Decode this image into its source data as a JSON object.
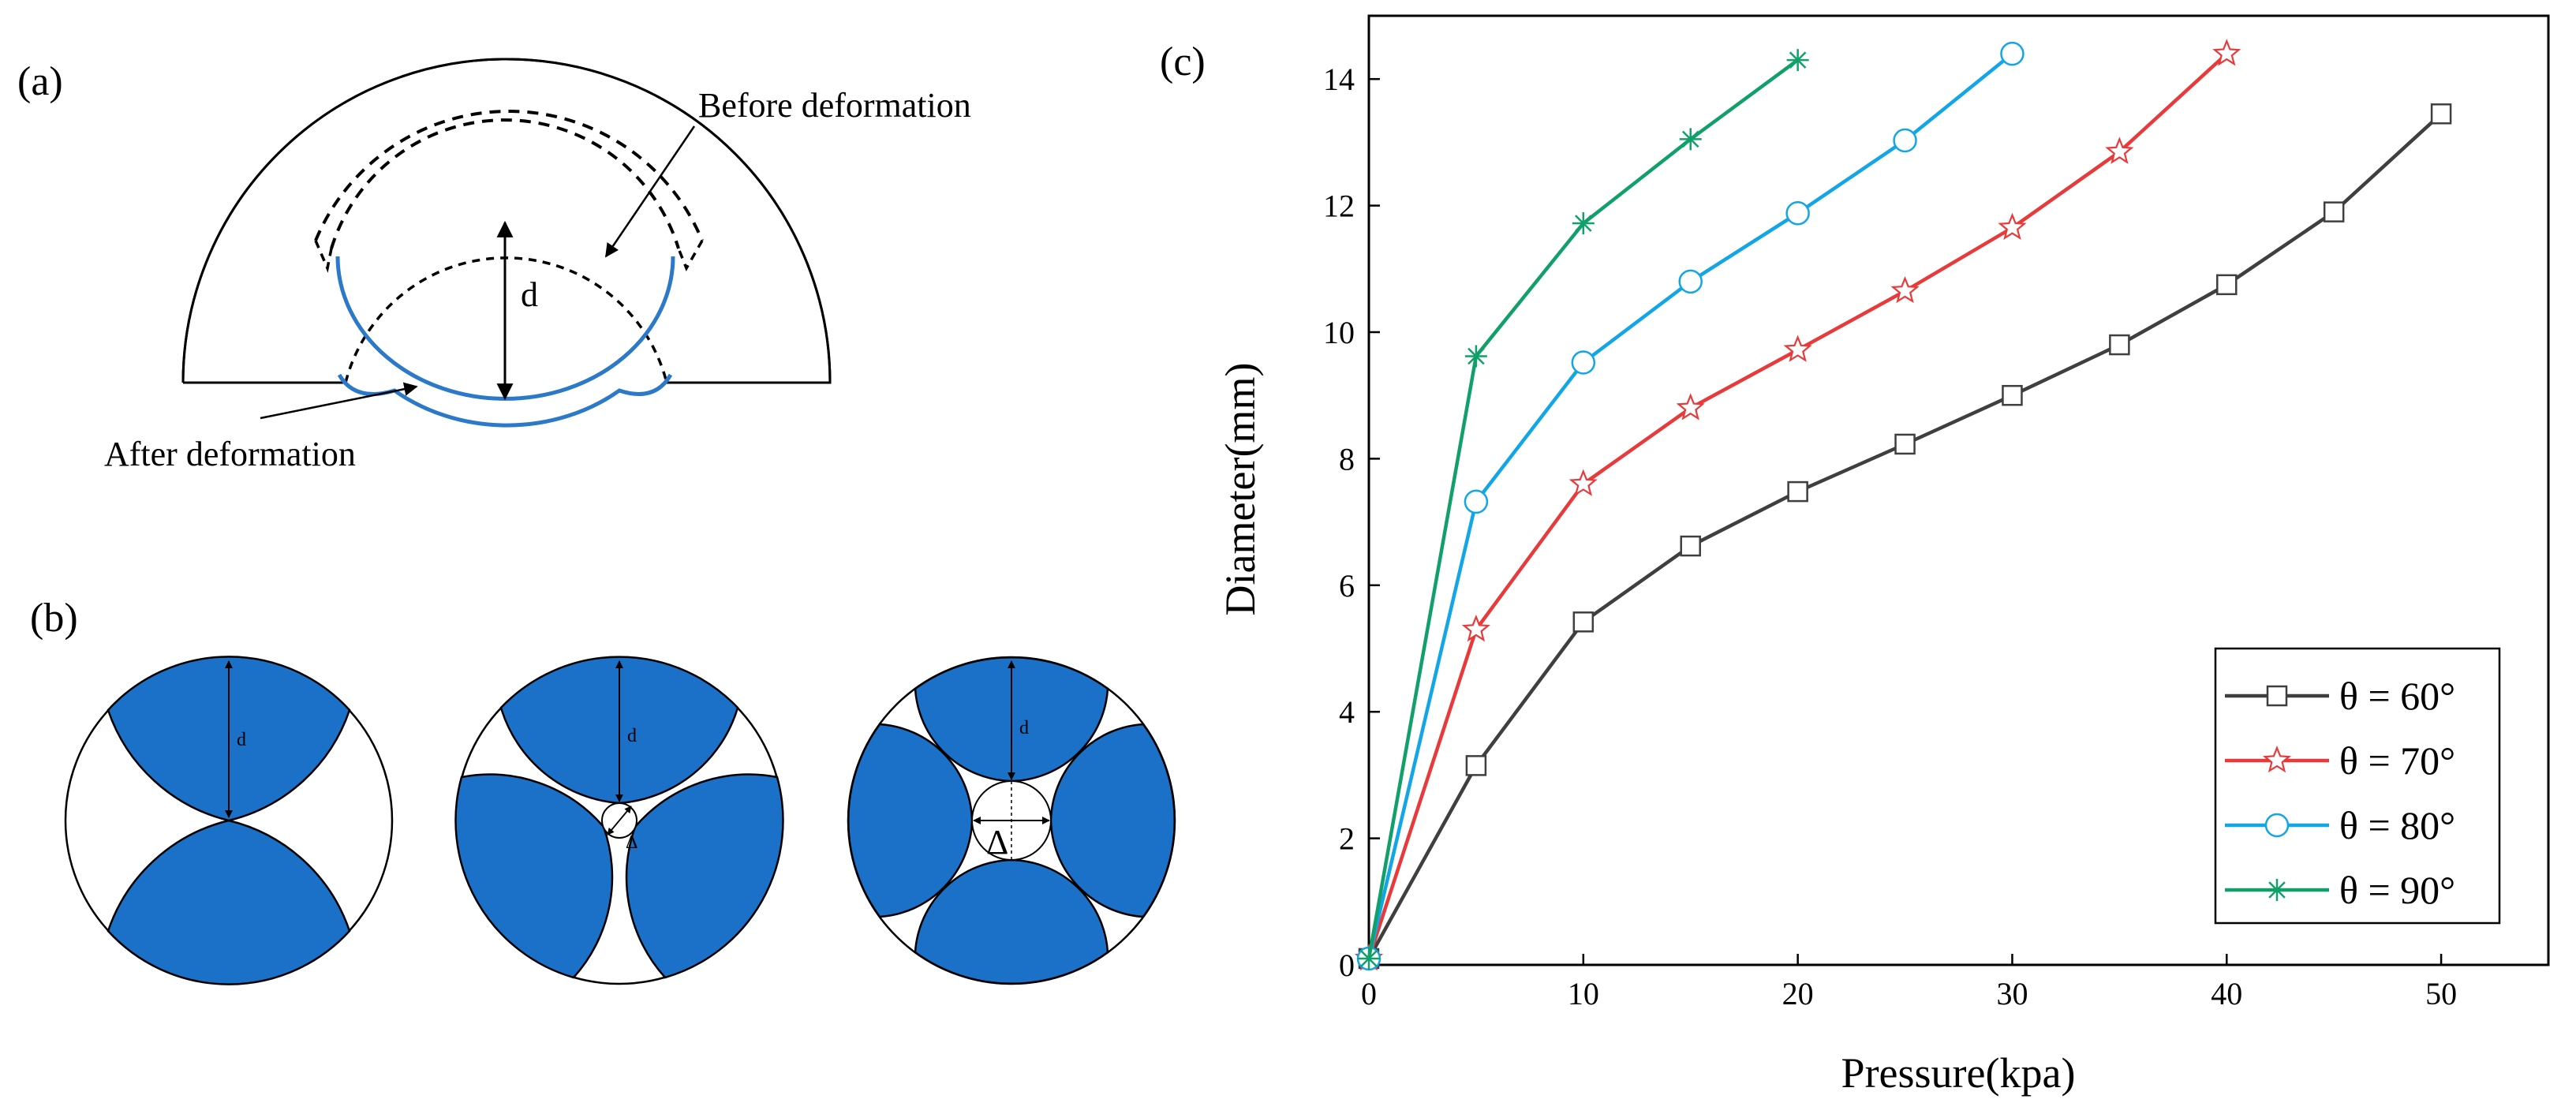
{
  "panels": {
    "a": {
      "label": "(a)",
      "before_label": "Before deformation",
      "after_label": "After deformation",
      "d_label": "d"
    },
    "b": {
      "label": "(b)",
      "d_label": "d",
      "delta_label": "Δ"
    },
    "c": {
      "label": "(c)"
    }
  },
  "colors": {
    "blue_fill": "#1a71c7",
    "blue_line": "#2b79c8",
    "series_60": "#3f3f3f",
    "series_70": "#e83a3a",
    "series_80": "#12a6e6",
    "series_90": "#11a06a"
  },
  "chart_data": {
    "type": "line",
    "title": "",
    "xlabel": "Pressure(kpa)",
    "ylabel": "Diameter(mm)",
    "xlim": [
      0,
      55
    ],
    "ylim": [
      0,
      15
    ],
    "xticks": [
      0,
      10,
      20,
      30,
      40,
      50
    ],
    "yticks": [
      0,
      2,
      4,
      6,
      8,
      10,
      12,
      14
    ],
    "legend_position": "bottom-right",
    "series": [
      {
        "name": "θ = 60°",
        "marker": "square",
        "color": "#3f3f3f",
        "x": [
          0,
          5,
          10,
          15,
          20,
          25,
          30,
          35,
          40,
          45,
          50
        ],
        "y": [
          0.1,
          3.15,
          5.42,
          6.62,
          7.48,
          8.23,
          9.0,
          9.8,
          10.75,
          11.9,
          13.45
        ]
      },
      {
        "name": "θ = 70°",
        "marker": "star",
        "color": "#e83a3a",
        "x": [
          0,
          5,
          10,
          15,
          20,
          25,
          30,
          35,
          40
        ],
        "y": [
          0.1,
          5.3,
          7.6,
          8.8,
          9.72,
          10.65,
          11.65,
          12.85,
          14.4
        ]
      },
      {
        "name": "θ = 80°",
        "marker": "circle",
        "color": "#12a6e6",
        "x": [
          0,
          5,
          10,
          15,
          20,
          25,
          30
        ],
        "y": [
          0.1,
          7.32,
          9.52,
          10.8,
          11.88,
          13.03,
          14.4
        ]
      },
      {
        "name": "θ = 90°",
        "marker": "asterisk",
        "color": "#11a06a",
        "x": [
          0,
          5,
          10,
          15,
          20
        ],
        "y": [
          0.1,
          9.62,
          11.72,
          13.05,
          14.3
        ]
      }
    ]
  }
}
